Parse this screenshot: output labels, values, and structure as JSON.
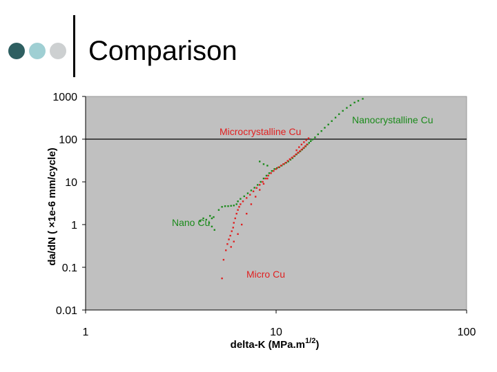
{
  "slide": {
    "title": "Comparison",
    "dots": [
      {
        "name": "dark-teal-dot",
        "color": "#2e5f61"
      },
      {
        "name": "light-teal-dot",
        "color": "#9fcfd3"
      },
      {
        "name": "gray-dot",
        "color": "#cdd0d1"
      }
    ]
  },
  "chart_data": {
    "type": "scatter",
    "xscale": "log",
    "yscale": "log",
    "xlim": [
      1,
      100
    ],
    "ylim": [
      0.01,
      1000
    ],
    "xticks": [
      "1",
      "10",
      "100"
    ],
    "yticks": [
      "1000",
      "100",
      "10",
      "1",
      "0.1",
      "0.01"
    ],
    "xlabel": "delta-K (MPa.m",
    "xlabel_sup": "1/2",
    "xlabel_end": ")",
    "ylabel": "da/dN ( ×1e-6 mm/cycle)",
    "plot_background": "#c0c0c0",
    "reference_line_y": 100,
    "annotations": [
      {
        "text": "Nanocrystalline Cu",
        "color": "#1a8a1a"
      },
      {
        "text": "Microcrystalline Cu",
        "color": "#e02020"
      },
      {
        "text": "Nano Cu",
        "color": "#1a8a1a"
      },
      {
        "text": "Micro Cu",
        "color": "#e02020"
      }
    ],
    "series": [
      {
        "color": "#1a8a1a",
        "points": [
          [
            4.0,
            1.2
          ],
          [
            4.15,
            1.4
          ],
          [
            4.3,
            1.3
          ],
          [
            4.45,
            1.1
          ],
          [
            4.6,
            0.9
          ],
          [
            4.75,
            0.75
          ],
          [
            4.5,
            1.6
          ],
          [
            4.6,
            1.4
          ],
          [
            4.7,
            1.5
          ],
          [
            5.0,
            2.2
          ],
          [
            5.2,
            2.6
          ],
          [
            5.4,
            2.7
          ],
          [
            5.6,
            2.7
          ],
          [
            5.8,
            2.75
          ],
          [
            6.0,
            2.8
          ],
          [
            6.2,
            3.0
          ],
          [
            6.3,
            3.5
          ],
          [
            6.5,
            4.0
          ],
          [
            6.8,
            4.6
          ],
          [
            7.1,
            5.4
          ],
          [
            7.4,
            6.3
          ],
          [
            7.7,
            7.3
          ],
          [
            8.0,
            8.5
          ],
          [
            8.3,
            10
          ],
          [
            8.6,
            12
          ],
          [
            8.9,
            14
          ],
          [
            9.2,
            16
          ],
          [
            9.5,
            18
          ],
          [
            9.8,
            20
          ],
          [
            10.1,
            21
          ],
          [
            10.4,
            22
          ],
          [
            10.7,
            24
          ],
          [
            11.0,
            26
          ],
          [
            11.3,
            28
          ],
          [
            11.6,
            30
          ],
          [
            11.9,
            33
          ],
          [
            12.2,
            36
          ],
          [
            12.5,
            40
          ],
          [
            12.8,
            44
          ],
          [
            13.1,
            48
          ],
          [
            13.4,
            52
          ],
          [
            13.7,
            57
          ],
          [
            14.0,
            62
          ],
          [
            14.3,
            68
          ],
          [
            14.6,
            75
          ],
          [
            14.9,
            82
          ],
          [
            15.2,
            90
          ],
          [
            15.5,
            98
          ],
          [
            16.0,
            110
          ],
          [
            16.6,
            130
          ],
          [
            17.3,
            155
          ],
          [
            18.0,
            185
          ],
          [
            18.8,
            220
          ],
          [
            19.6,
            265
          ],
          [
            20.5,
            320
          ],
          [
            21.4,
            385
          ],
          [
            22.4,
            460
          ],
          [
            23.5,
            540
          ],
          [
            24.6,
            620
          ],
          [
            25.8,
            720
          ],
          [
            27.0,
            790
          ],
          [
            28.5,
            880
          ],
          [
            8.2,
            30
          ],
          [
            8.6,
            26
          ],
          [
            9.0,
            24
          ]
        ]
      },
      {
        "color": "#e02020",
        "points": [
          [
            5.2,
            0.055
          ],
          [
            5.3,
            0.15
          ],
          [
            5.45,
            0.25
          ],
          [
            5.55,
            0.35
          ],
          [
            5.65,
            0.45
          ],
          [
            5.75,
            0.55
          ],
          [
            5.85,
            0.7
          ],
          [
            5.95,
            0.85
          ],
          [
            6.0,
            1.1
          ],
          [
            6.1,
            1.4
          ],
          [
            6.2,
            1.8
          ],
          [
            6.3,
            2.2
          ],
          [
            6.4,
            2.6
          ],
          [
            6.5,
            3.0
          ],
          [
            6.7,
            3.5
          ],
          [
            7.0,
            4.2
          ],
          [
            7.3,
            5.0
          ],
          [
            7.6,
            6.0
          ],
          [
            7.9,
            7.2
          ],
          [
            8.2,
            8.5
          ],
          [
            8.5,
            10
          ],
          [
            8.8,
            12
          ],
          [
            9.1,
            14
          ],
          [
            9.4,
            16
          ],
          [
            9.7,
            18
          ],
          [
            10.0,
            20
          ],
          [
            10.3,
            22
          ],
          [
            10.6,
            24
          ],
          [
            10.9,
            26
          ],
          [
            11.2,
            28
          ],
          [
            11.5,
            31
          ],
          [
            11.8,
            34
          ],
          [
            12.1,
            37
          ],
          [
            12.4,
            40
          ],
          [
            12.7,
            44
          ],
          [
            13.0,
            48
          ],
          [
            13.3,
            52
          ],
          [
            13.6,
            57
          ],
          [
            13.9,
            62
          ],
          [
            14.2,
            68
          ],
          [
            14.5,
            75
          ],
          [
            12.8,
            55
          ],
          [
            13.2,
            65
          ],
          [
            13.6,
            75
          ],
          [
            14.0,
            85
          ],
          [
            14.4,
            95
          ],
          [
            14.8,
            105
          ],
          [
            5.8,
            0.3
          ],
          [
            6.0,
            0.4
          ],
          [
            6.3,
            0.6
          ],
          [
            6.6,
            1.0
          ],
          [
            7.0,
            1.8
          ],
          [
            7.4,
            3.0
          ],
          [
            7.8,
            4.5
          ],
          [
            8.2,
            6.5
          ],
          [
            8.6,
            9
          ],
          [
            9.0,
            12
          ]
        ]
      }
    ]
  }
}
